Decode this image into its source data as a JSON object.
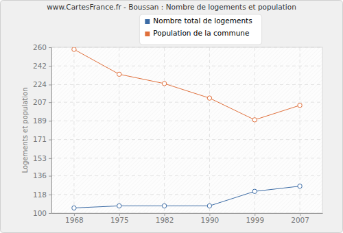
{
  "chart_data": {
    "type": "line",
    "title": "www.CartesFrance.fr - Boussan : Nombre de logements et population",
    "y_label": "Logements et population",
    "categories": [
      "1968",
      "1975",
      "1982",
      "1990",
      "1999",
      "2007"
    ],
    "series": [
      {
        "name": "Nombre total de logements",
        "color": "#3b6ba5",
        "marker": "circle",
        "values": [
          105,
          107,
          107,
          107,
          121,
          126
        ]
      },
      {
        "name": "Population de la commune",
        "color": "#e0703c",
        "marker": "circle",
        "values": [
          258,
          234,
          225,
          211,
          190,
          204
        ]
      }
    ],
    "ylim": [
      100,
      260
    ],
    "yticks": [
      100,
      118,
      136,
      153,
      171,
      189,
      207,
      224,
      242,
      260
    ],
    "grid": true,
    "legend": "top"
  }
}
